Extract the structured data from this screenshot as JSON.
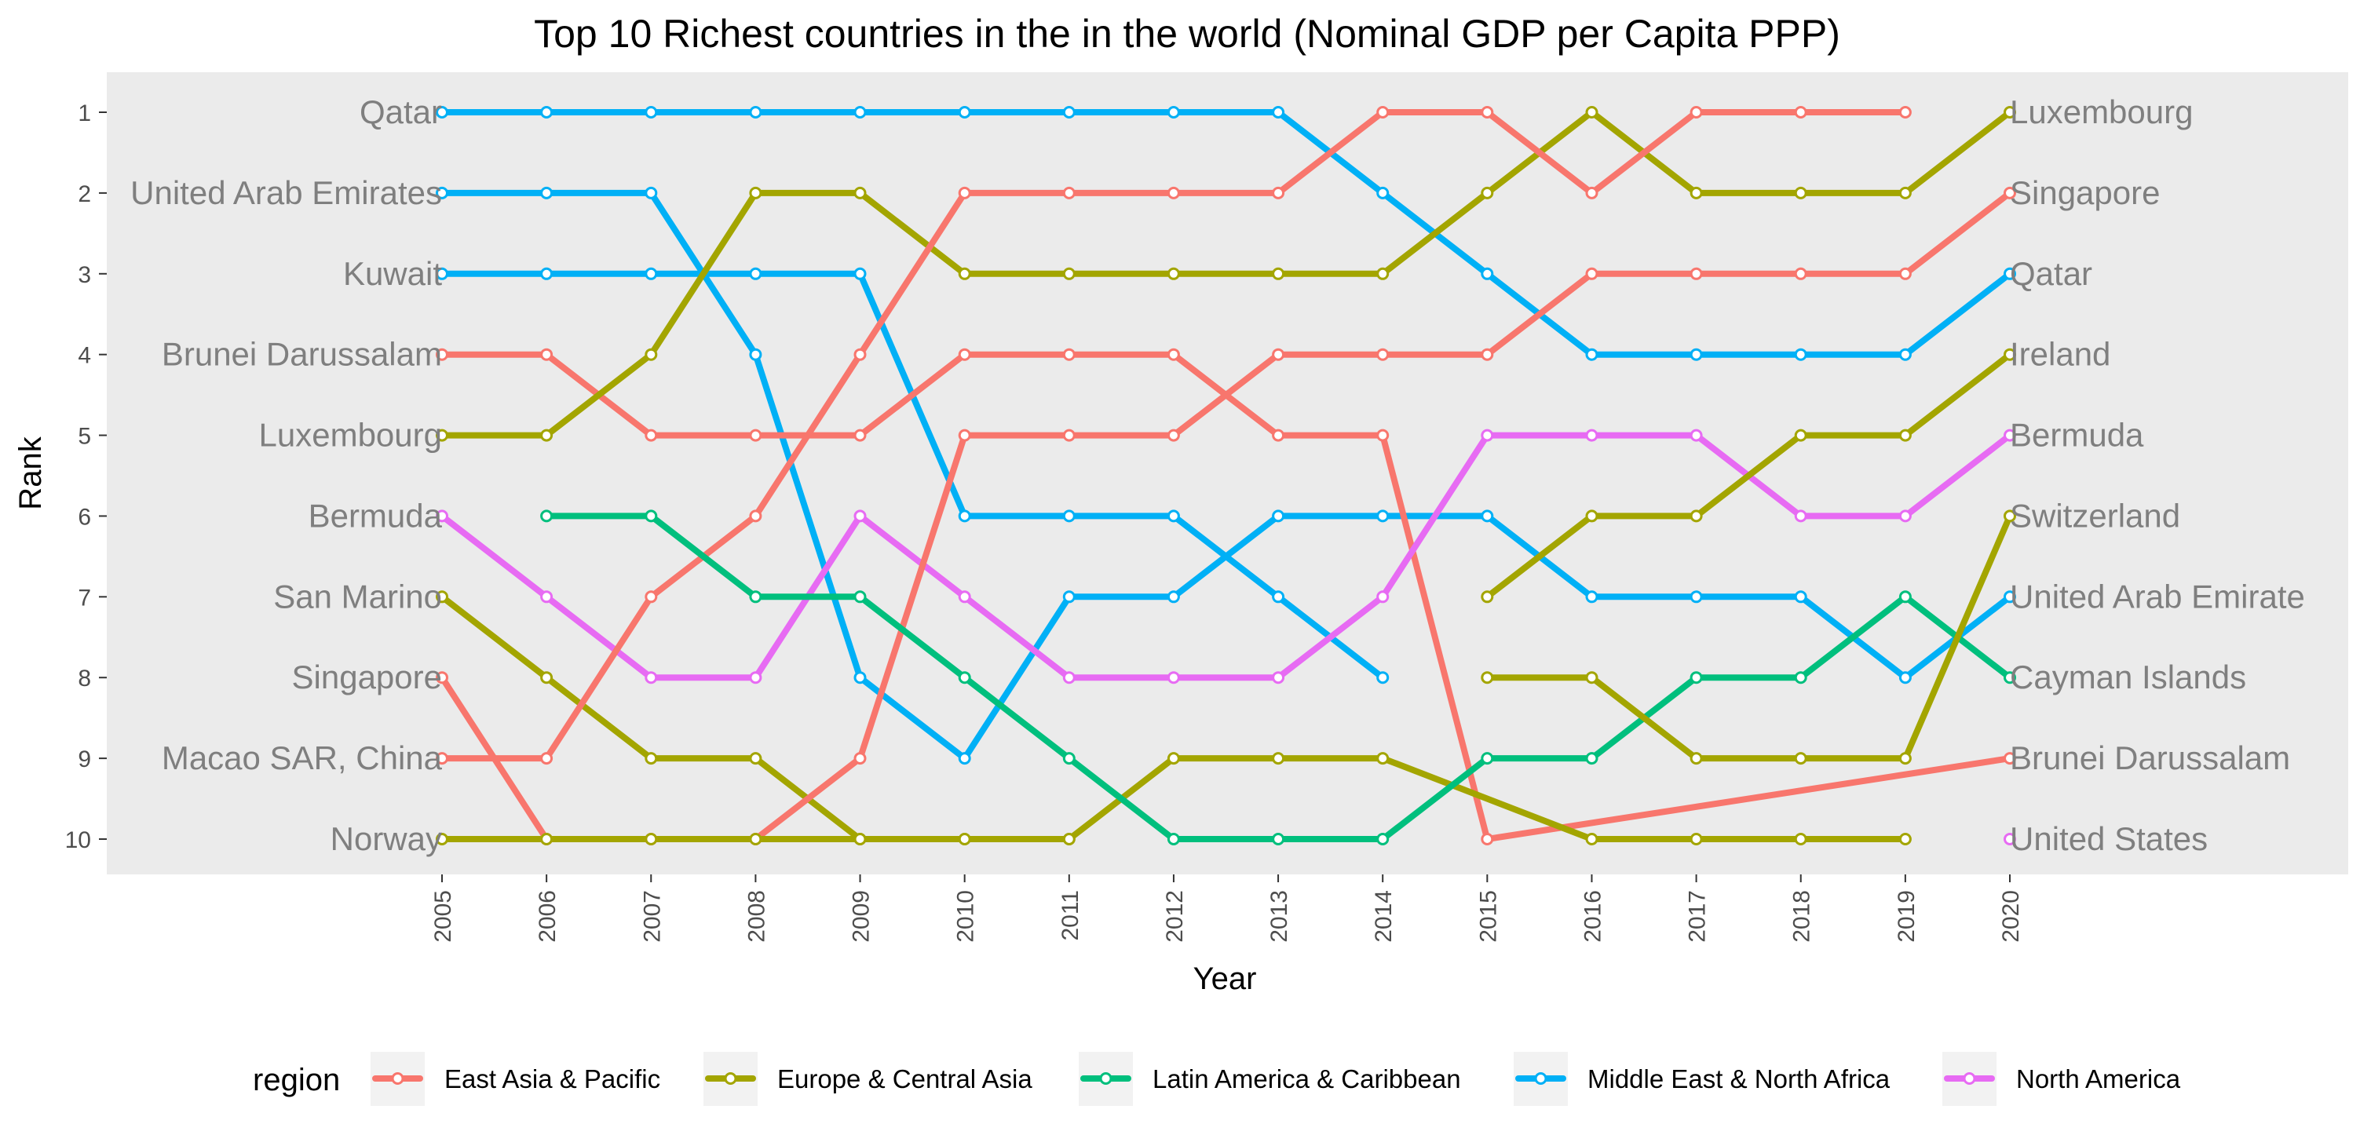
{
  "chart_data": {
    "type": "line",
    "title": "Top 10 Richest countries in the in the world (Nominal GDP per Capita PPP)",
    "xlabel": "Year",
    "ylabel": "Rank",
    "x": [
      2005,
      2006,
      2007,
      2008,
      2009,
      2010,
      2011,
      2012,
      2013,
      2014,
      2015,
      2016,
      2017,
      2018,
      2019,
      2020
    ],
    "ylim": [
      1,
      10
    ],
    "y_reversed": true,
    "y_ticks": [
      1,
      2,
      3,
      4,
      5,
      6,
      7,
      8,
      9,
      10
    ],
    "grid": false,
    "background": "#ebebeb",
    "legend": {
      "title": "region",
      "placement": "bottom",
      "entries": [
        {
          "name": "East Asia & Pacific",
          "color": "#f8766d"
        },
        {
          "name": "Europe & Central Asia",
          "color": "#a3a500"
        },
        {
          "name": "Latin America & Caribbean",
          "color": "#00bf7d"
        },
        {
          "name": "Middle East & North Africa",
          "color": "#00b0f6"
        },
        {
          "name": "North America",
          "color": "#e76bf3"
        }
      ]
    },
    "left_labels": [
      {
        "rank": 1,
        "text": "Qatar"
      },
      {
        "rank": 2,
        "text": "United Arab Emirates"
      },
      {
        "rank": 3,
        "text": "Kuwait"
      },
      {
        "rank": 4,
        "text": "Brunei Darussalam"
      },
      {
        "rank": 5,
        "text": "Luxembourg"
      },
      {
        "rank": 6,
        "text": "Bermuda"
      },
      {
        "rank": 7,
        "text": "San Marino"
      },
      {
        "rank": 8,
        "text": "Singapore"
      },
      {
        "rank": 9,
        "text": "Macao SAR, China"
      },
      {
        "rank": 10,
        "text": "Norway"
      }
    ],
    "right_labels": [
      {
        "rank": 1,
        "text": "Luxembourg"
      },
      {
        "rank": 2,
        "text": "Singapore"
      },
      {
        "rank": 3,
        "text": "Qatar"
      },
      {
        "rank": 4,
        "text": "Ireland"
      },
      {
        "rank": 5,
        "text": "Bermuda"
      },
      {
        "rank": 6,
        "text": "Switzerland"
      },
      {
        "rank": 7,
        "text": "United Arab Emirate"
      },
      {
        "rank": 8,
        "text": "Cayman Islands"
      },
      {
        "rank": 9,
        "text": "Brunei Darussalam"
      },
      {
        "rank": 10,
        "text": "United States"
      }
    ],
    "series": [
      {
        "region": "Middle East & North Africa",
        "points": [
          [
            2005,
            1
          ],
          [
            2006,
            1
          ],
          [
            2007,
            1
          ],
          [
            2008,
            1
          ],
          [
            2009,
            1
          ],
          [
            2010,
            1
          ],
          [
            2011,
            1
          ],
          [
            2012,
            1
          ],
          [
            2013,
            1
          ],
          [
            2014,
            2
          ],
          [
            2015,
            3
          ],
          [
            2016,
            4
          ],
          [
            2017,
            4
          ],
          [
            2018,
            4
          ],
          [
            2019,
            4
          ],
          [
            2020,
            3
          ]
        ]
      },
      {
        "region": "Middle East & North Africa",
        "points": [
          [
            2005,
            2
          ],
          [
            2006,
            2
          ],
          [
            2007,
            2
          ],
          [
            2008,
            4
          ],
          [
            2009,
            8
          ],
          [
            2010,
            9
          ],
          [
            2011,
            7
          ],
          [
            2012,
            7
          ],
          [
            2013,
            6
          ],
          [
            2014,
            6
          ],
          [
            2015,
            6
          ],
          [
            2016,
            7
          ],
          [
            2017,
            7
          ],
          [
            2018,
            7
          ],
          [
            2019,
            8
          ],
          [
            2020,
            7
          ]
        ]
      },
      {
        "region": "Middle East & North Africa",
        "points": [
          [
            2005,
            3
          ],
          [
            2006,
            3
          ],
          [
            2007,
            3
          ],
          [
            2008,
            3
          ],
          [
            2009,
            3
          ],
          [
            2010,
            6
          ],
          [
            2011,
            6
          ],
          [
            2012,
            6
          ],
          [
            2013,
            7
          ],
          [
            2014,
            8
          ]
        ]
      },
      {
        "region": "East Asia & Pacific",
        "points": [
          [
            2005,
            4
          ],
          [
            2006,
            4
          ],
          [
            2007,
            5
          ],
          [
            2008,
            5
          ],
          [
            2009,
            5
          ],
          [
            2010,
            4
          ],
          [
            2011,
            4
          ],
          [
            2012,
            4
          ],
          [
            2013,
            5
          ],
          [
            2014,
            5
          ],
          [
            2015,
            10
          ],
          [
            2020,
            9
          ]
        ]
      },
      {
        "region": "Europe & Central Asia",
        "points": [
          [
            2005,
            5
          ],
          [
            2006,
            5
          ],
          [
            2007,
            4
          ],
          [
            2008,
            2
          ],
          [
            2009,
            2
          ],
          [
            2010,
            3
          ],
          [
            2011,
            3
          ],
          [
            2012,
            3
          ],
          [
            2013,
            3
          ],
          [
            2014,
            3
          ],
          [
            2015,
            2
          ],
          [
            2016,
            1
          ],
          [
            2017,
            2
          ],
          [
            2018,
            2
          ],
          [
            2019,
            2
          ],
          [
            2020,
            1
          ]
        ]
      },
      {
        "region": "North America",
        "points": [
          [
            2005,
            6
          ],
          [
            2006,
            7
          ],
          [
            2007,
            8
          ],
          [
            2008,
            8
          ],
          [
            2009,
            6
          ],
          [
            2010,
            7
          ],
          [
            2011,
            8
          ],
          [
            2012,
            8
          ],
          [
            2013,
            8
          ],
          [
            2014,
            7
          ],
          [
            2015,
            5
          ],
          [
            2016,
            5
          ],
          [
            2017,
            5
          ],
          [
            2018,
            6
          ],
          [
            2019,
            6
          ],
          [
            2020,
            5
          ]
        ]
      },
      {
        "region": "Europe & Central Asia",
        "points": [
          [
            2005,
            7
          ],
          [
            2006,
            8
          ],
          [
            2007,
            9
          ],
          [
            2008,
            9
          ],
          [
            2009,
            10
          ],
          [
            2010,
            10
          ],
          [
            2011,
            10
          ],
          [
            2012,
            9
          ],
          [
            2013,
            9
          ],
          [
            2014,
            9
          ],
          [
            2016,
            10
          ],
          [
            2017,
            10
          ],
          [
            2018,
            10
          ],
          [
            2019,
            10
          ]
        ]
      },
      {
        "region": "East Asia & Pacific",
        "points": [
          [
            2005,
            8
          ],
          [
            2006,
            10
          ],
          [
            2007,
            10
          ],
          [
            2008,
            10
          ],
          [
            2009,
            9
          ],
          [
            2010,
            5
          ],
          [
            2011,
            5
          ],
          [
            2012,
            5
          ],
          [
            2013,
            4
          ],
          [
            2014,
            4
          ],
          [
            2015,
            4
          ],
          [
            2016,
            3
          ],
          [
            2017,
            3
          ],
          [
            2018,
            3
          ],
          [
            2019,
            3
          ],
          [
            2020,
            2
          ]
        ]
      },
      {
        "region": "East Asia & Pacific",
        "points": [
          [
            2005,
            9
          ],
          [
            2006,
            9
          ],
          [
            2007,
            7
          ],
          [
            2008,
            6
          ],
          [
            2009,
            4
          ],
          [
            2010,
            2
          ],
          [
            2011,
            2
          ],
          [
            2012,
            2
          ],
          [
            2013,
            2
          ],
          [
            2014,
            1
          ],
          [
            2015,
            1
          ],
          [
            2016,
            2
          ],
          [
            2017,
            1
          ],
          [
            2018,
            1
          ],
          [
            2019,
            1
          ]
        ]
      },
      {
        "region": "Europe & Central Asia",
        "points": [
          [
            2005,
            10
          ],
          [
            2006,
            10
          ],
          [
            2007,
            10
          ],
          [
            2008,
            10
          ],
          [
            2009,
            10
          ],
          [
            2010,
            10
          ],
          [
            2011,
            10
          ]
        ]
      },
      {
        "region": "Latin America & Caribbean",
        "points": [
          [
            2006,
            6
          ],
          [
            2007,
            6
          ],
          [
            2008,
            7
          ],
          [
            2009,
            7
          ],
          [
            2010,
            8
          ],
          [
            2011,
            9
          ],
          [
            2012,
            10
          ],
          [
            2013,
            10
          ],
          [
            2014,
            10
          ],
          [
            2015,
            9
          ],
          [
            2016,
            9
          ],
          [
            2017,
            8
          ],
          [
            2018,
            8
          ],
          [
            2019,
            7
          ],
          [
            2020,
            8
          ]
        ]
      },
      {
        "region": "Europe & Central Asia",
        "points": [
          [
            2015,
            7
          ],
          [
            2016,
            6
          ],
          [
            2017,
            6
          ],
          [
            2018,
            5
          ],
          [
            2019,
            5
          ],
          [
            2020,
            4
          ]
        ]
      },
      {
        "region": "Europe & Central Asia",
        "points": [
          [
            2015,
            8
          ],
          [
            2016,
            8
          ],
          [
            2017,
            9
          ],
          [
            2018,
            9
          ],
          [
            2019,
            9
          ],
          [
            2020,
            6
          ]
        ]
      },
      {
        "region": "North America",
        "points": [
          [
            2020,
            10
          ]
        ]
      }
    ]
  }
}
